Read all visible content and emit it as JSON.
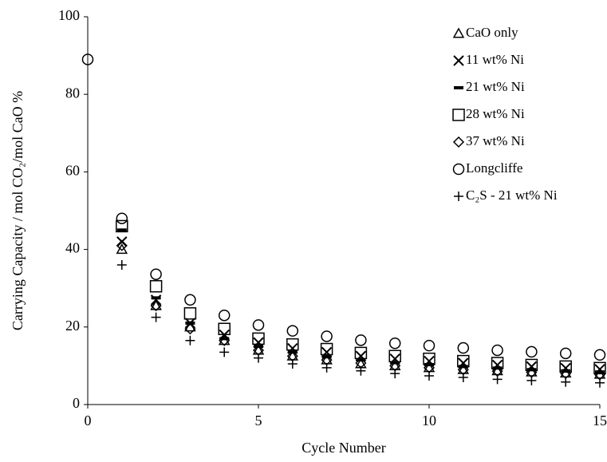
{
  "chart_data": {
    "type": "scatter",
    "x_label": "Cycle Number",
    "y_label": "Carrying Capacity / mol CO₂/mol CaO %",
    "xlim": [
      0,
      15
    ],
    "xticks": [
      0,
      5,
      10,
      15
    ],
    "ylim": [
      0,
      100
    ],
    "yticks": [
      0,
      20,
      40,
      60,
      80,
      100
    ],
    "legend": "upper right",
    "series": [
      {
        "name": "CaO only",
        "marker": "triangle",
        "color": "#000000",
        "x": [
          1,
          2,
          3,
          4,
          5,
          6,
          7,
          8,
          9,
          10,
          11,
          12,
          13,
          14,
          15
        ],
        "values": [
          40,
          25.5,
          20,
          16.5,
          14,
          12.5,
          11.5,
          10.5,
          10,
          9.5,
          9,
          8.7,
          8.4,
          8.1,
          7.8
        ]
      },
      {
        "name": "11 wt% Ni",
        "marker": "x",
        "color": "#000000",
        "x": [
          1,
          2,
          3,
          4,
          5,
          6,
          7,
          8,
          9,
          10,
          11,
          12,
          13,
          14,
          15
        ],
        "values": [
          42,
          27,
          21,
          18,
          16,
          14.5,
          13.5,
          12.5,
          11.8,
          11.2,
          10.7,
          10.2,
          9.8,
          9.4,
          9.1
        ]
      },
      {
        "name": "21 wt% Ni",
        "marker": "bar",
        "color": "#000000",
        "x": [
          1,
          2,
          3,
          4,
          5,
          6,
          7,
          8,
          9,
          10,
          11,
          12,
          13,
          14,
          15
        ],
        "values": [
          45,
          27.5,
          21,
          17,
          15,
          13.5,
          12.3,
          11.5,
          10.8,
          10.3,
          9.8,
          9.4,
          9,
          8.7,
          8.4
        ]
      },
      {
        "name": "28 wt% Ni",
        "marker": "square",
        "color": "#000000",
        "x": [
          1,
          2,
          3,
          4,
          5,
          6,
          7,
          8,
          9,
          10,
          11,
          12,
          13,
          14,
          15
        ],
        "values": [
          46,
          30.5,
          23.5,
          19.5,
          17,
          15.5,
          14.3,
          13.3,
          12.5,
          11.8,
          11.2,
          10.7,
          10.2,
          9.8,
          9.4
        ]
      },
      {
        "name": "37 wt% Ni",
        "marker": "diamond",
        "color": "#000000",
        "x": [
          1,
          2,
          3,
          4,
          5,
          6,
          7,
          8,
          9,
          10,
          11,
          12,
          13,
          14,
          15
        ],
        "values": [
          41,
          25.5,
          19.5,
          16.5,
          14,
          12.5,
          11.5,
          10.7,
          10,
          9.5,
          9,
          8.6,
          8.3,
          8,
          7.7
        ]
      },
      {
        "name": "Longcliffe",
        "marker": "circle",
        "color": "#000000",
        "x": [
          0,
          1,
          2,
          3,
          4,
          5,
          6,
          7,
          8,
          9,
          10,
          11,
          12,
          13,
          14,
          15
        ],
        "values": [
          89,
          48,
          33.6,
          27,
          23,
          20.5,
          19,
          17.6,
          16.6,
          15.8,
          15.2,
          14.6,
          14,
          13.6,
          13.2,
          12.8
        ]
      },
      {
        "name": "C₂S - 21 wt% Ni",
        "marker": "plus",
        "color": "#000000",
        "x": [
          1,
          2,
          3,
          4,
          5,
          6,
          7,
          8,
          9,
          10,
          11,
          12,
          13,
          14,
          15
        ],
        "values": [
          36,
          22.5,
          16.5,
          13.5,
          12,
          10.5,
          9.5,
          8.7,
          8,
          7.4,
          7,
          6.5,
          6.2,
          5.8,
          5.6
        ]
      }
    ]
  }
}
